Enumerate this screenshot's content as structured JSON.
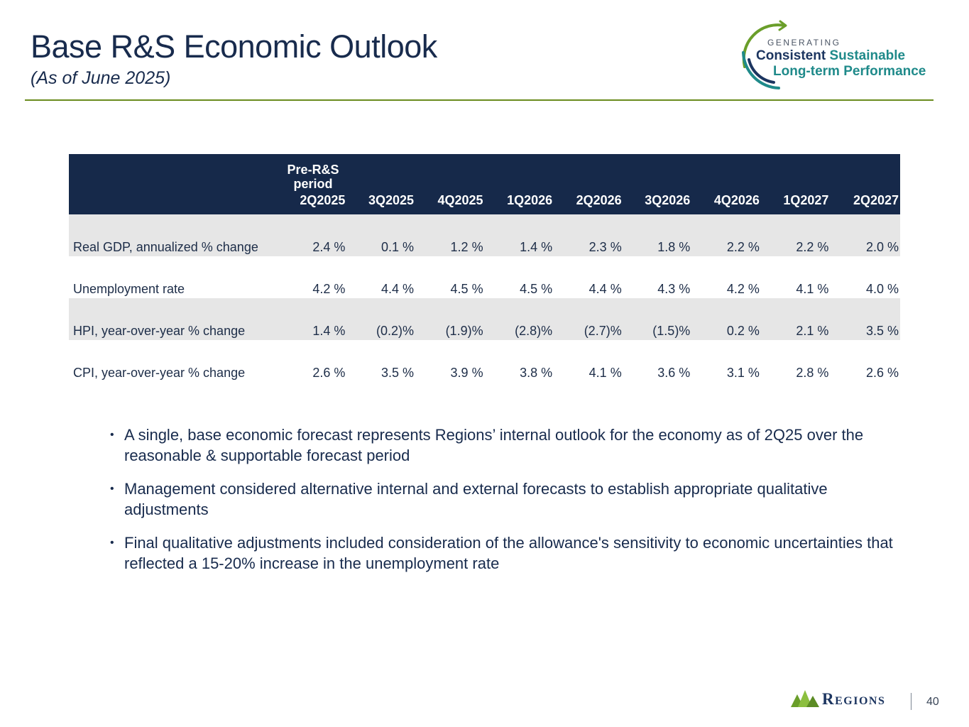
{
  "header": {
    "title": "Base R&S Economic Outlook",
    "subtitle": "(As of June 2025)"
  },
  "tagline": {
    "generating": "GENERATING",
    "consistent": "Consistent",
    "sustainable": "Sustainable",
    "longterm": "Long-term Performance"
  },
  "table": {
    "pre_label": "Pre-R&S period",
    "columns": [
      "2Q2025",
      "3Q2025",
      "4Q2025",
      "1Q2026",
      "2Q2026",
      "3Q2026",
      "4Q2026",
      "1Q2027",
      "2Q2027"
    ],
    "rows": [
      {
        "label": "Real GDP, annualized % change",
        "values": [
          "2.4 %",
          "0.1 %",
          "1.2 %",
          "1.4 %",
          "2.3 %",
          "1.8 %",
          "2.2 %",
          "2.2 %",
          "2.0 %"
        ]
      },
      {
        "label": "Unemployment rate",
        "values": [
          "4.2 %",
          "4.4 %",
          "4.5 %",
          "4.5 %",
          "4.4 %",
          "4.3 %",
          "4.2 %",
          "4.1 %",
          "4.0 %"
        ]
      },
      {
        "label": "HPI, year-over-year % change",
        "values": [
          "1.4 %",
          "(0.2)%",
          "(1.9)%",
          "(2.8)%",
          "(2.7)%",
          "(1.5)%",
          "0.2 %",
          "2.1 %",
          "3.5 %"
        ]
      },
      {
        "label": "CPI, year-over-year % change",
        "values": [
          "2.6 %",
          "3.5 %",
          "3.9 %",
          "3.8 %",
          "4.1 %",
          "3.6 %",
          "3.1 %",
          "2.8 %",
          "2.6 %"
        ]
      }
    ]
  },
  "notes": [
    "A single, base economic forecast represents Regions’ internal outlook for the economy as of 2Q25 over the reasonable & supportable forecast period",
    "Management considered alternative internal and external forecasts to establish appropriate qualitative adjustments",
    "Final qualitative adjustments included consideration of the allowance's sensitivity to economic uncertainties that reflected a 15-20% increase in the unemployment rate"
  ],
  "footer": {
    "brand": "Regions",
    "page_number": "40"
  },
  "colors": {
    "navy": "#16294a",
    "green_rule": "#6a8c1e",
    "teal": "#1f8a8a",
    "row_shade": "#e6e6e6"
  }
}
